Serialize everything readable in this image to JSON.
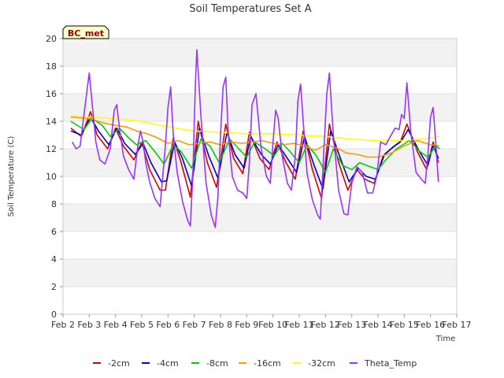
{
  "chart_data": {
    "type": "line",
    "title": "Soil Temperatures Set A",
    "xlabel": "Time",
    "ylabel": "Soil Temperature (C)",
    "badge": "BC_met",
    "ylim": [
      0,
      20
    ],
    "yticks": [
      "0",
      "2",
      "4",
      "6",
      "8",
      "10",
      "12",
      "14",
      "16",
      "18",
      "20"
    ],
    "xlim": [
      2,
      17
    ],
    "xticks": [
      "Feb 2",
      "Feb 3",
      "Feb 4",
      "Feb 5",
      "Feb 6",
      "Feb 7",
      "Feb 8",
      "Feb 9",
      "Feb 10",
      "Feb 11",
      "Feb 12",
      "Feb 13",
      "Feb 14",
      "Feb 15",
      "Feb 16",
      "Feb 17"
    ],
    "grid": true,
    "legend_position": "bottom",
    "series": [
      {
        "name": "-2cm",
        "color": "#dd0000",
        "x": [
          2.3,
          2.7,
          3.05,
          3.3,
          3.7,
          4.0,
          4.3,
          4.7,
          5.0,
          5.3,
          5.7,
          5.9,
          6.2,
          6.5,
          6.85,
          7.15,
          7.5,
          7.85,
          8.2,
          8.5,
          8.85,
          9.1,
          9.5,
          9.85,
          10.15,
          10.5,
          10.85,
          11.15,
          11.5,
          11.85,
          12.15,
          12.5,
          12.85,
          13.2,
          13.5,
          13.85,
          14.2,
          14.5,
          14.85,
          15.1,
          15.5,
          15.85,
          16.1,
          16.3
        ],
        "y": [
          13.5,
          12.9,
          14.7,
          13.0,
          12.0,
          13.5,
          12.2,
          11.2,
          12.5,
          10.5,
          9.0,
          9.0,
          12.8,
          11.0,
          8.5,
          14.0,
          11.0,
          9.2,
          13.8,
          11.3,
          10.2,
          13.2,
          11.3,
          10.5,
          12.5,
          11.0,
          9.8,
          13.3,
          10.5,
          8.4,
          13.8,
          11.0,
          9.0,
          10.5,
          9.8,
          9.5,
          11.5,
          12.0,
          12.5,
          13.8,
          11.8,
          10.5,
          12.5,
          11.0
        ]
      },
      {
        "name": "-4cm",
        "color": "#0000cc",
        "x": [
          2.3,
          2.7,
          3.05,
          3.35,
          3.75,
          4.05,
          4.35,
          4.75,
          5.05,
          5.35,
          5.75,
          5.95,
          6.25,
          6.55,
          6.9,
          7.2,
          7.55,
          7.9,
          8.25,
          8.55,
          8.9,
          9.15,
          9.55,
          9.9,
          10.2,
          10.55,
          10.9,
          11.2,
          11.55,
          11.9,
          12.2,
          12.55,
          12.9,
          13.25,
          13.55,
          13.9,
          14.25,
          14.55,
          14.9,
          15.15,
          15.55,
          15.9,
          16.1,
          16.3
        ],
        "y": [
          13.3,
          13.0,
          14.3,
          13.3,
          12.3,
          13.5,
          12.4,
          11.6,
          12.4,
          11.0,
          9.6,
          9.7,
          12.5,
          11.3,
          9.3,
          13.5,
          11.5,
          9.9,
          13.2,
          11.6,
          10.6,
          12.9,
          11.6,
          10.9,
          12.3,
          11.3,
          10.3,
          12.9,
          10.9,
          9.1,
          13.3,
          11.4,
          9.6,
          10.6,
          10.0,
          9.8,
          11.6,
          12.1,
          12.6,
          13.4,
          11.9,
          10.8,
          12.3,
          11.3
        ]
      },
      {
        "name": "-8cm",
        "color": "#00cc00",
        "x": [
          2.3,
          2.8,
          3.1,
          3.5,
          3.8,
          4.15,
          4.5,
          4.8,
          5.15,
          5.5,
          5.85,
          6.2,
          6.5,
          6.9,
          7.25,
          7.6,
          7.95,
          8.35,
          8.7,
          9.0,
          9.3,
          9.7,
          10.05,
          10.35,
          10.65,
          11.0,
          11.3,
          11.65,
          12.0,
          12.3,
          12.65,
          13.0,
          13.3,
          13.7,
          14.0,
          14.3,
          14.7,
          15.2,
          15.6,
          15.9,
          16.2,
          16.35
        ],
        "y": [
          14.0,
          13.4,
          14.2,
          13.7,
          12.9,
          13.5,
          12.8,
          12.3,
          12.6,
          11.8,
          10.9,
          12.3,
          11.8,
          10.6,
          12.7,
          12.2,
          11.0,
          12.7,
          12.0,
          11.4,
          12.5,
          12.0,
          11.5,
          12.4,
          11.8,
          11.0,
          12.3,
          11.5,
          10.3,
          12.0,
          10.8,
          10.5,
          11.0,
          10.7,
          10.5,
          11.2,
          12.0,
          12.6,
          11.8,
          11.4,
          12.2,
          12.0
        ]
      },
      {
        "name": "-16cm",
        "color": "#ff9900",
        "x": [
          2.3,
          3.0,
          3.5,
          4.0,
          4.4,
          4.8,
          5.2,
          5.6,
          6.0,
          6.4,
          6.8,
          7.2,
          7.6,
          8.0,
          8.4,
          8.8,
          9.2,
          9.6,
          10.0,
          10.4,
          10.8,
          11.2,
          11.6,
          12.0,
          12.4,
          12.8,
          13.2,
          13.6,
          14.0,
          14.5,
          15.0,
          15.5,
          16.0,
          16.35
        ],
        "y": [
          14.3,
          14.2,
          13.9,
          13.7,
          13.6,
          13.3,
          13.1,
          12.8,
          12.4,
          12.6,
          12.3,
          12.4,
          12.5,
          12.3,
          12.5,
          12.4,
          12.5,
          12.6,
          12.4,
          12.3,
          12.4,
          12.2,
          11.9,
          12.3,
          12.1,
          11.7,
          11.6,
          11.4,
          11.4,
          11.7,
          12.2,
          12.6,
          12.3,
          12.2
        ]
      },
      {
        "name": "-32cm",
        "color": "#ffff00",
        "x": [
          2.3,
          3.0,
          4.0,
          5.0,
          6.0,
          7.0,
          8.0,
          9.0,
          10.0,
          11.0,
          12.0,
          13.0,
          14.0,
          15.0,
          15.5,
          16.0,
          16.35
        ],
        "y": [
          14.4,
          14.3,
          14.2,
          14.0,
          13.6,
          13.3,
          13.2,
          13.1,
          13.1,
          13.0,
          12.9,
          12.7,
          12.6,
          12.6,
          12.7,
          12.8,
          12.9
        ]
      },
      {
        "name": "Theta_Temp",
        "color": "#9933ff",
        "x": [
          2.35,
          2.5,
          2.65,
          2.8,
          2.9,
          3.0,
          3.1,
          3.25,
          3.4,
          3.6,
          3.8,
          3.95,
          4.05,
          4.15,
          4.3,
          4.5,
          4.7,
          4.85,
          4.95,
          5.05,
          5.15,
          5.3,
          5.5,
          5.7,
          5.9,
          6.0,
          6.1,
          6.2,
          6.35,
          6.55,
          6.75,
          6.85,
          6.95,
          7.0,
          7.05,
          7.1,
          7.25,
          7.45,
          7.65,
          7.8,
          7.9,
          8.0,
          8.1,
          8.2,
          8.3,
          8.45,
          8.65,
          8.85,
          9.0,
          9.1,
          9.2,
          9.35,
          9.55,
          9.75,
          9.9,
          10.0,
          10.1,
          10.2,
          10.35,
          10.55,
          10.7,
          10.85,
          10.95,
          11.05,
          11.15,
          11.3,
          11.5,
          11.7,
          11.8,
          11.9,
          12.05,
          12.15,
          12.3,
          12.5,
          12.7,
          12.85,
          13.0,
          13.2,
          13.4,
          13.6,
          13.8,
          13.95,
          14.1,
          14.3,
          14.5,
          14.65,
          14.8,
          14.9,
          15.0,
          15.1,
          15.25,
          15.45,
          15.65,
          15.8,
          15.9,
          16.0,
          16.1,
          16.2,
          16.3
        ],
        "y": [
          12.5,
          12.0,
          12.2,
          14.5,
          16.0,
          17.5,
          15.5,
          12.5,
          11.2,
          10.9,
          12.0,
          14.8,
          15.2,
          13.5,
          11.5,
          10.5,
          9.8,
          12.2,
          13.3,
          12.5,
          11.0,
          9.6,
          8.4,
          7.8,
          12.2,
          15.0,
          16.5,
          13.0,
          10.3,
          8.2,
          6.8,
          6.4,
          10.2,
          14.0,
          17.0,
          19.2,
          14.5,
          9.5,
          7.2,
          6.3,
          8.5,
          13.0,
          16.5,
          17.2,
          13.0,
          10.0,
          9.0,
          8.8,
          8.4,
          11.0,
          15.2,
          16.0,
          12.0,
          10.0,
          9.5,
          12.5,
          14.8,
          14.2,
          11.5,
          9.5,
          9.0,
          11.5,
          15.5,
          16.7,
          14.0,
          10.2,
          8.3,
          7.2,
          6.9,
          10.5,
          16.0,
          17.5,
          13.0,
          9.0,
          7.3,
          7.2,
          9.5,
          10.7,
          10.3,
          8.8,
          8.8,
          10.0,
          12.5,
          12.3,
          13.0,
          13.5,
          13.4,
          14.5,
          14.2,
          16.8,
          13.2,
          10.3,
          9.8,
          9.5,
          11.5,
          14.3,
          15.0,
          12.5,
          9.6
        ]
      }
    ]
  }
}
